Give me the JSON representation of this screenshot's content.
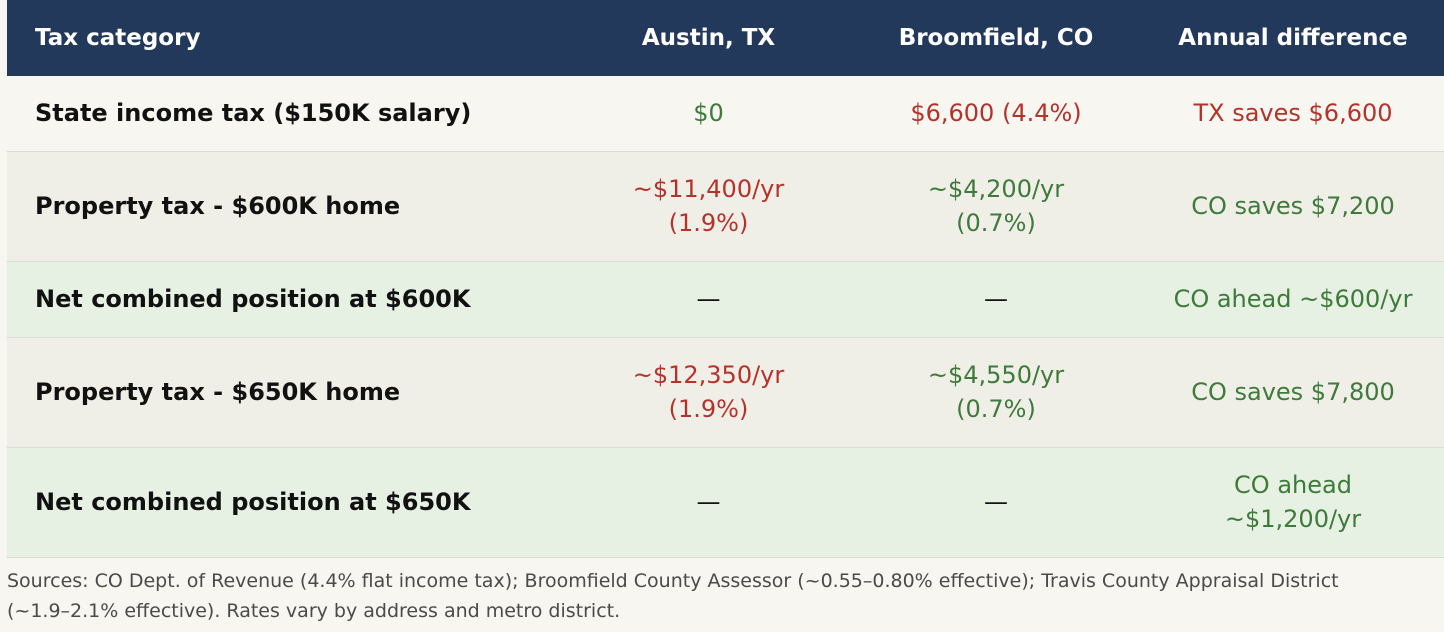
{
  "table": {
    "headers": [
      "Tax category",
      "Austin, TX",
      "Broomfield, CO",
      "Annual difference"
    ],
    "rows": [
      {
        "category": "State income tax ($150K salary)",
        "austin": [
          "$0"
        ],
        "broomfield": [
          "$6,600 (4.4%)"
        ],
        "difference": [
          "TX saves $6,600"
        ]
      },
      {
        "category": "Property tax - $600K home",
        "austin": [
          "~$11,400/yr",
          "(1.9%)"
        ],
        "broomfield": [
          "~$4,200/yr",
          "(0.7%)"
        ],
        "difference": [
          "CO saves $7,200"
        ]
      },
      {
        "category": "Net combined position at $600K",
        "austin": [
          "—"
        ],
        "broomfield": [
          "—"
        ],
        "difference": [
          "CO ahead ~$600/yr"
        ]
      },
      {
        "category": "Property tax - $650K home",
        "austin": [
          "~$12,350/yr",
          "(1.9%)"
        ],
        "broomfield": [
          "~$4,550/yr",
          "(0.7%)"
        ],
        "difference": [
          "CO saves $7,800"
        ]
      },
      {
        "category": "Net combined position at $650K",
        "austin": [
          "—"
        ],
        "broomfield": [
          "—"
        ],
        "difference": [
          "CO ahead",
          "~$1,200/yr"
        ]
      }
    ]
  },
  "sources": {
    "line1": "Sources: CO Dept. of Revenue (4.4% flat income tax); Broomfield County Assessor (~0.55–0.80% effective); Travis County Appraisal District",
    "line2": "(~1.9–2.1% effective). Rates vary by address and metro district."
  },
  "colors": {
    "header_bg": "#22395c",
    "negative": "#b5322b",
    "positive": "#3e7a3a",
    "net_row_bg": "#e6f1e3"
  }
}
